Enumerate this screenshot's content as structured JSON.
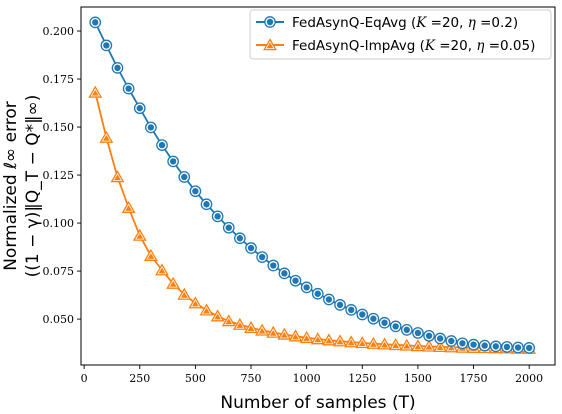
{
  "chart_data": {
    "type": "line",
    "xlabel": "Number of samples (T)",
    "ylabel_line1": "Normalized ℓ∞ error",
    "ylabel_line2": "((1 − γ)‖Q_T − Q*‖∞)",
    "xlim": [
      -14,
      2116
    ],
    "ylim": [
      0.0261,
      0.2125
    ],
    "x_ticks": [
      0,
      250,
      500,
      750,
      1000,
      1250,
      1500,
      1750,
      2000
    ],
    "x_tick_labels": [
      "0",
      "250",
      "500",
      "750",
      "1000",
      "1250",
      "1500",
      "1750",
      "2000"
    ],
    "y_ticks": [
      0.05,
      0.075,
      0.1,
      0.125,
      0.15,
      0.175,
      0.2
    ],
    "y_tick_labels": [
      "0.050",
      "0.075",
      "0.100",
      "0.125",
      "0.150",
      "0.175",
      "0.200"
    ],
    "grid": false,
    "legend_position": "top-right",
    "x": [
      50,
      100,
      150,
      200,
      250,
      300,
      350,
      400,
      450,
      500,
      550,
      600,
      650,
      700,
      750,
      800,
      850,
      900,
      950,
      1000,
      1050,
      1100,
      1150,
      1200,
      1250,
      1300,
      1350,
      1400,
      1450,
      1500,
      1550,
      1600,
      1650,
      1700,
      1750,
      1800,
      1850,
      1900,
      1950,
      2000
    ],
    "series": [
      {
        "name": "FedAsynQ-EqAvg (K = 20, η = 0.2)",
        "color": "#1f77b4",
        "marker": "circle",
        "values": [
          0.2045,
          0.1925,
          0.1808,
          0.17,
          0.1598,
          0.1498,
          0.1406,
          0.1321,
          0.124,
          0.1166,
          0.1098,
          0.1035,
          0.0976,
          0.0921,
          0.087,
          0.0823,
          0.0779,
          0.0738,
          0.07,
          0.0665,
          0.0632,
          0.0602,
          0.0574,
          0.0548,
          0.0524,
          0.0502,
          0.0481,
          0.0462,
          0.0444,
          0.0428,
          0.0413,
          0.0399,
          0.0386,
          0.0374,
          0.0367,
          0.0362,
          0.0358,
          0.0355,
          0.0352,
          0.035
        ]
      },
      {
        "name": "FedAsynQ-ImpAvg (K = 20, η = 0.05)",
        "color": "#ff7f0e",
        "marker": "triangle",
        "values": [
          0.168,
          0.1445,
          0.124,
          0.108,
          0.0935,
          0.083,
          0.0755,
          0.0685,
          0.0628,
          0.0583,
          0.0546,
          0.0515,
          0.049,
          0.0471,
          0.0455,
          0.0441,
          0.043,
          0.042,
          0.0411,
          0.0403,
          0.0396,
          0.039,
          0.0385,
          0.038,
          0.0376,
          0.0372,
          0.0369,
          0.0366,
          0.0363,
          0.036,
          0.0358,
          0.0356,
          0.0354,
          0.0352,
          0.0351,
          0.035,
          0.0349,
          0.0348,
          0.0347,
          0.0346
        ]
      }
    ]
  },
  "legend": [
    {
      "name": "FedAsynQ-EqAvg (",
      "param1": "K",
      "eq1": " =20, ",
      "param2": "η",
      "eq2": " =0.2)"
    },
    {
      "name": "FedAsynQ-ImpAvg (",
      "param1": "K",
      "eq1": " =20, ",
      "param2": "η",
      "eq2": " =0.05)"
    }
  ]
}
